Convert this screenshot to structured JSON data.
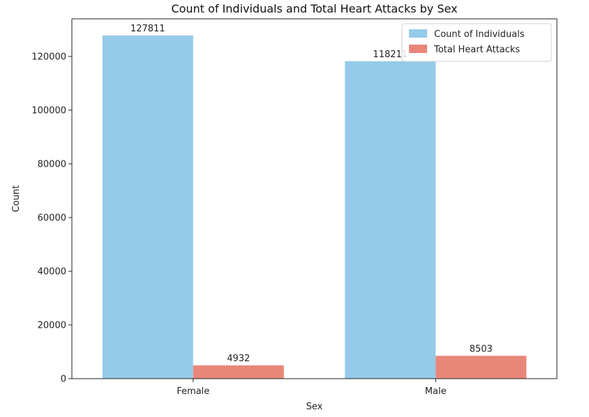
{
  "chart_data": {
    "type": "bar",
    "title": "Count of Individuals and Total Heart Attacks by Sex",
    "xlabel": "Sex",
    "ylabel": "Count",
    "categories": [
      "Female",
      "Male"
    ],
    "series": [
      {
        "name": "Count of Individuals",
        "values": [
          127811,
          118211
        ],
        "color": "#95CBE8"
      },
      {
        "name": "Total Heart Attacks",
        "values": [
          4932,
          8503
        ],
        "color": "#E9867A"
      }
    ],
    "ylim": [
      0,
      134000
    ],
    "yticks": [
      0,
      20000,
      40000,
      60000,
      80000,
      100000,
      120000
    ],
    "legend": "top-right",
    "grid": false
  }
}
